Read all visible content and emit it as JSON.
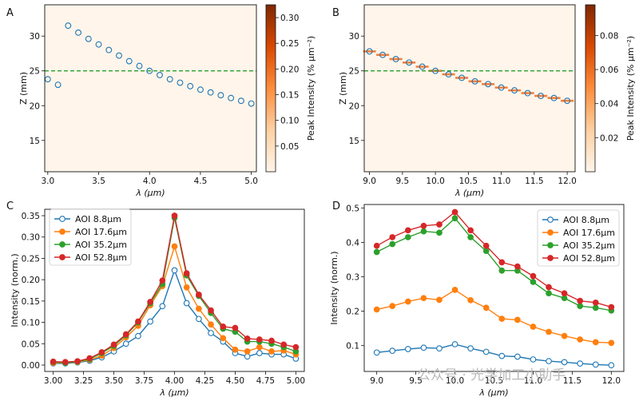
{
  "watermark": "公众号 · 光学加工小助手",
  "chart_data": [
    {
      "panel": "A",
      "type": "scatter",
      "xlabel": "λ (μm)",
      "ylabel": "Z (mm)",
      "xlim": [
        2.97,
        5.05
      ],
      "ylim": [
        10.5,
        34.5
      ],
      "xticks": [
        "3.0",
        "3.5",
        "4.0",
        "4.5",
        "5.0"
      ],
      "xtick_values": [
        3.0,
        3.5,
        4.0,
        4.5,
        5.0
      ],
      "yticks": [
        "15",
        "20",
        "25",
        "30"
      ],
      "ytick_values": [
        15,
        20,
        25,
        30
      ],
      "x": [
        3.0,
        3.1,
        3.2,
        3.3,
        3.4,
        3.5,
        3.6,
        3.7,
        3.8,
        3.9,
        4.0,
        4.1,
        4.2,
        4.3,
        4.4,
        4.5,
        4.6,
        4.7,
        4.8,
        4.9,
        5.0
      ],
      "y": [
        23.8,
        23.0,
        31.5,
        30.5,
        29.6,
        28.8,
        28.0,
        27.2,
        26.4,
        25.7,
        25.0,
        24.4,
        23.8,
        23.3,
        22.8,
        22.3,
        21.9,
        21.5,
        21.1,
        20.7,
        20.3
      ],
      "reference_line": {
        "y": 25,
        "color": "#2ca02c",
        "style": "dashed"
      },
      "colorbar": {
        "label": "Peak Intensity (% μm⁻²)",
        "range": [
          0,
          0.325
        ],
        "ticks": [
          "0.05",
          "0.10",
          "0.15",
          "0.20",
          "0.25",
          "0.30"
        ],
        "tick_values": [
          0.05,
          0.1,
          0.15,
          0.2,
          0.25,
          0.3
        ]
      }
    },
    {
      "panel": "B",
      "type": "scatter",
      "xlabel": "λ (μm)",
      "ylabel": "Z (mm)",
      "xlim": [
        8.92,
        12.12
      ],
      "ylim": [
        10.5,
        34.5
      ],
      "xticks": [
        "9.0",
        "9.5",
        "10.0",
        "10.5",
        "11.0",
        "11.5",
        "12.0"
      ],
      "xtick_values": [
        9.0,
        9.5,
        10.0,
        10.5,
        11.0,
        11.5,
        12.0
      ],
      "yticks": [
        "15",
        "20",
        "25",
        "30"
      ],
      "ytick_values": [
        15,
        20,
        25,
        30
      ],
      "x": [
        9.0,
        9.2,
        9.4,
        9.6,
        9.8,
        10.0,
        10.2,
        10.4,
        10.6,
        10.8,
        11.0,
        11.2,
        11.4,
        11.6,
        11.8,
        12.0
      ],
      "y": [
        27.8,
        27.3,
        26.7,
        26.2,
        25.6,
        25.0,
        24.5,
        24.0,
        23.5,
        23.1,
        22.6,
        22.2,
        21.8,
        21.4,
        21.1,
        20.7
      ],
      "reference_line": {
        "y": 25,
        "color": "#2ca02c",
        "style": "dashed"
      },
      "colorbar": {
        "label": "Peak Intensity (% μm⁻²)",
        "range": [
          0,
          0.098
        ],
        "ticks": [
          "0.02",
          "0.04",
          "0.06",
          "0.08"
        ],
        "tick_values": [
          0.02,
          0.04,
          0.06,
          0.08
        ]
      }
    },
    {
      "panel": "C",
      "type": "line",
      "xlabel": "λ (μm)",
      "ylabel": "Intensity (norm.)",
      "xlim": [
        2.93,
        5.07
      ],
      "ylim": [
        -0.015,
        0.365
      ],
      "xticks": [
        "3.00",
        "3.25",
        "3.50",
        "3.75",
        "4.00",
        "4.25",
        "4.50",
        "4.75",
        "5.00"
      ],
      "xtick_values": [
        3.0,
        3.25,
        3.5,
        3.75,
        4.0,
        4.25,
        4.5,
        4.75,
        5.0
      ],
      "yticks": [
        "0.00",
        "0.05",
        "0.10",
        "0.15",
        "0.20",
        "0.25",
        "0.30",
        "0.35"
      ],
      "ytick_values": [
        0.0,
        0.05,
        0.1,
        0.15,
        0.2,
        0.25,
        0.3,
        0.35
      ],
      "legend_position": "top-left",
      "x": [
        3.0,
        3.1,
        3.2,
        3.3,
        3.4,
        3.5,
        3.6,
        3.7,
        3.8,
        3.9,
        4.0,
        4.1,
        4.2,
        4.3,
        4.4,
        4.5,
        4.6,
        4.7,
        4.8,
        4.9,
        5.0
      ],
      "series": [
        {
          "name": "AOI 8.8μm",
          "color": "#1f77b4",
          "hollow": true,
          "values": [
            0.004,
            0.004,
            0.006,
            0.01,
            0.018,
            0.032,
            0.05,
            0.068,
            0.102,
            0.138,
            0.222,
            0.145,
            0.108,
            0.075,
            0.055,
            0.028,
            0.02,
            0.028,
            0.025,
            0.025,
            0.015
          ]
        },
        {
          "name": "AOI 17.6μm",
          "color": "#ff7f0e",
          "hollow": false,
          "values": [
            0.005,
            0.005,
            0.007,
            0.012,
            0.022,
            0.04,
            0.065,
            0.092,
            0.14,
            0.185,
            0.278,
            0.182,
            0.132,
            0.095,
            0.063,
            0.036,
            0.032,
            0.042,
            0.032,
            0.034,
            0.025
          ]
        },
        {
          "name": "AOI 35.2μm",
          "color": "#2ca02c",
          "hollow": false,
          "values": [
            0.007,
            0.005,
            0.008,
            0.014,
            0.028,
            0.045,
            0.07,
            0.1,
            0.145,
            0.19,
            0.345,
            0.21,
            0.162,
            0.122,
            0.085,
            0.078,
            0.055,
            0.055,
            0.05,
            0.042,
            0.032
          ]
        },
        {
          "name": "AOI 52.8μm",
          "color": "#d62728",
          "hollow": false,
          "values": [
            0.008,
            0.007,
            0.009,
            0.016,
            0.03,
            0.048,
            0.072,
            0.102,
            0.148,
            0.198,
            0.35,
            0.215,
            0.165,
            0.128,
            0.09,
            0.087,
            0.062,
            0.06,
            0.057,
            0.048,
            0.042
          ]
        }
      ]
    },
    {
      "panel": "D",
      "type": "line",
      "xlabel": "λ (μm)",
      "ylabel": "Intensity (norm.)",
      "xlim": [
        8.84,
        12.16
      ],
      "ylim": [
        0.025,
        0.51
      ],
      "xticks": [
        "9.0",
        "9.5",
        "10.0",
        "10.5",
        "11.0",
        "11.5",
        "12.0"
      ],
      "xtick_values": [
        9.0,
        9.5,
        10.0,
        10.5,
        11.0,
        11.5,
        12.0
      ],
      "yticks": [
        "0.1",
        "0.2",
        "0.3",
        "0.4",
        "0.5"
      ],
      "ytick_values": [
        0.1,
        0.2,
        0.3,
        0.4,
        0.5
      ],
      "legend_position": "top-right",
      "x": [
        9.0,
        9.2,
        9.4,
        9.6,
        9.8,
        10.0,
        10.2,
        10.4,
        10.6,
        10.8,
        11.0,
        11.2,
        11.4,
        11.6,
        11.8,
        12.0
      ],
      "series": [
        {
          "name": "AOI 8.8μm",
          "color": "#1f77b4",
          "hollow": true,
          "values": [
            0.08,
            0.085,
            0.09,
            0.094,
            0.092,
            0.104,
            0.092,
            0.082,
            0.07,
            0.068,
            0.06,
            0.055,
            0.052,
            0.048,
            0.045,
            0.043
          ]
        },
        {
          "name": "AOI 17.6μm",
          "color": "#ff7f0e",
          "hollow": false,
          "values": [
            0.205,
            0.215,
            0.228,
            0.238,
            0.233,
            0.262,
            0.232,
            0.21,
            0.178,
            0.175,
            0.155,
            0.14,
            0.128,
            0.118,
            0.11,
            0.108
          ]
        },
        {
          "name": "AOI 35.2μm",
          "color": "#2ca02c",
          "hollow": false,
          "values": [
            0.372,
            0.395,
            0.415,
            0.432,
            0.428,
            0.47,
            0.415,
            0.375,
            0.318,
            0.318,
            0.285,
            0.252,
            0.238,
            0.215,
            0.21,
            0.202
          ]
        },
        {
          "name": "AOI 52.8μm",
          "color": "#d62728",
          "hollow": false,
          "values": [
            0.39,
            0.415,
            0.435,
            0.448,
            0.452,
            0.488,
            0.435,
            0.39,
            0.342,
            0.33,
            0.302,
            0.27,
            0.252,
            0.23,
            0.225,
            0.212
          ]
        }
      ]
    }
  ]
}
